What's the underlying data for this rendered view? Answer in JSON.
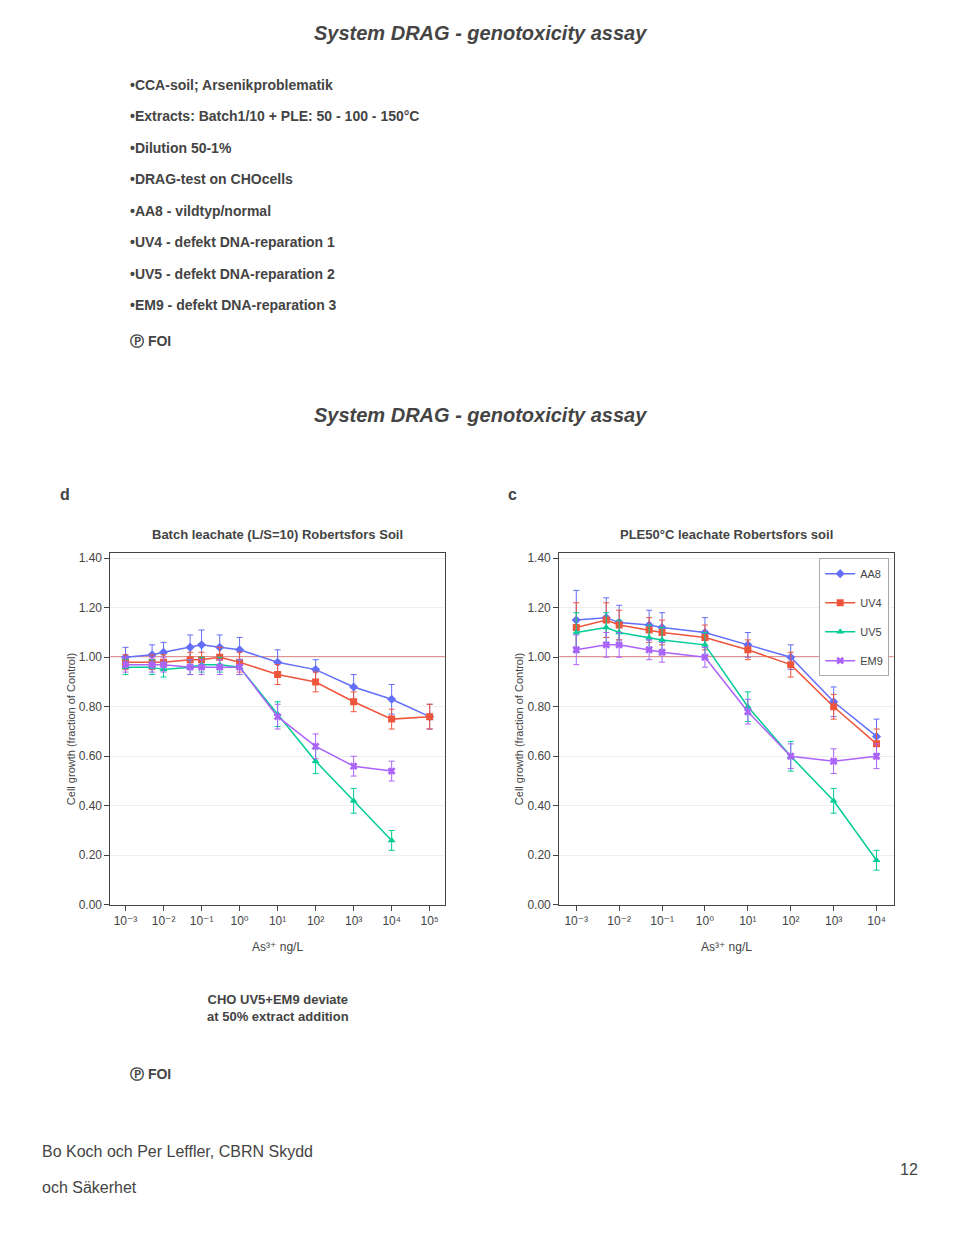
{
  "title": "System DRAG - genotoxicity assay",
  "bullets": [
    "•CCA-soil; Arsenikproblematik",
    "•Extracts: Batch1/10 + PLE: 50 - 100 - 150°C",
    "•Dilution 50-1%",
    "•DRAG-test on CHOcells",
    "•AA8 - vildtyp/normal",
    "•UV4 - defekt DNA-reparation 1",
    "•UV5 - defekt DNA-reparation 2",
    "•EM9 - defekt DNA-reparation 3"
  ],
  "footer": "Ⓟ FOI",
  "annotations": [
    "CHO UV5+EM9 deviate\nat 50% extract addition"
  ],
  "bottom_text": [
    "Bo Koch och Per Leffler, CBRN Skydd",
    "och Säkerhet"
  ],
  "page_number": "12",
  "chart_data": [
    {
      "type": "line",
      "title": "Batch leachate (L/S=10) Robertsfors Soil",
      "x_label": "As³⁺ ng/L",
      "y_label": "Cell growth (fraction of Control)",
      "annotations": [
        "d"
      ],
      "log": "x",
      "grid": "y",
      "x": [
        0.001,
        0.005,
        0.01,
        0.05,
        0.1,
        0.3,
        1,
        10,
        100,
        1000,
        10000,
        100000
      ],
      "series": [
        {
          "name": "AA8",
          "marker": "diamond",
          "values": [
            1.0,
            1.01,
            1.02,
            1.04,
            1.05,
            1.04,
            1.03,
            0.98,
            0.95,
            0.88,
            0.83,
            0.76
          ],
          "errors": [
            0.04,
            0.04,
            0.04,
            0.05,
            0.06,
            0.05,
            0.05,
            0.05,
            0.04,
            0.05,
            0.06,
            0.05
          ]
        },
        {
          "name": "UV4",
          "marker": "square",
          "values": [
            0.98,
            0.98,
            0.98,
            0.99,
            0.99,
            1.0,
            0.98,
            0.93,
            0.9,
            0.82,
            0.75,
            0.76
          ],
          "errors": [
            0.03,
            0.03,
            0.03,
            0.03,
            0.03,
            0.04,
            0.04,
            0.04,
            0.04,
            0.04,
            0.04,
            0.05
          ]
        },
        {
          "name": "UV5",
          "marker": "triangle-up",
          "values": [
            0.96,
            0.96,
            0.95,
            0.96,
            0.97,
            0.97,
            0.96,
            0.77,
            0.58,
            0.42,
            0.26,
            null
          ],
          "errors": [
            0.03,
            0.03,
            0.03,
            0.03,
            0.03,
            0.03,
            0.03,
            0.05,
            0.05,
            0.05,
            0.04,
            null
          ]
        },
        {
          "name": "EM9",
          "marker": "x",
          "values": [
            0.97,
            0.97,
            0.97,
            0.96,
            0.96,
            0.96,
            0.96,
            0.76,
            0.64,
            0.56,
            0.54,
            null
          ],
          "errors": [
            0.03,
            0.03,
            0.03,
            0.03,
            0.03,
            0.03,
            0.03,
            0.05,
            0.05,
            0.04,
            0.04,
            null
          ]
        }
      ],
      "reference_line": {
        "y": 1.0,
        "color": "#cc2222"
      },
      "xlim": [
        0.0004,
        250000
      ],
      "xticks": [
        {
          "value": 0.001,
          "label": "10⁻³"
        },
        {
          "value": 0.01,
          "label": "10⁻²"
        },
        {
          "value": 0.1,
          "label": "10⁻¹"
        },
        {
          "value": 1,
          "label": "10⁰"
        },
        {
          "value": 10,
          "label": "10¹"
        },
        {
          "value": 100,
          "label": "10²"
        },
        {
          "value": 1000,
          "label": "10³"
        },
        {
          "value": 10000,
          "label": "10⁴"
        },
        {
          "value": 100000,
          "label": "10⁵"
        }
      ],
      "ylim": [
        0.0,
        1.42
      ],
      "yticks": [
        {
          "value": 0.0,
          "label": "0.00"
        },
        {
          "value": 0.2,
          "label": "0.20"
        },
        {
          "value": 0.4,
          "label": "0.40"
        },
        {
          "value": 0.6,
          "label": "0.60"
        },
        {
          "value": 0.8,
          "label": "0.80"
        },
        {
          "value": 1.0,
          "label": "1.00"
        },
        {
          "value": 1.2,
          "label": "1.20"
        },
        {
          "value": 1.4,
          "label": "1.40"
        }
      ]
    },
    {
      "type": "line",
      "title": "PLE50°C leachate Robertsfors soil",
      "x_label": "As³⁺ ng/L",
      "y_label": "Cell growth (fraction of Control)",
      "annotations": [
        "c"
      ],
      "log": "x",
      "grid": "y",
      "legend": "upper right",
      "x": [
        0.001,
        0.005,
        0.01,
        0.05,
        0.1,
        1,
        10,
        100,
        1000,
        10000
      ],
      "series": [
        {
          "name": "AA8",
          "marker": "diamond",
          "values": [
            1.15,
            1.16,
            1.14,
            1.13,
            1.12,
            1.1,
            1.05,
            1.0,
            0.82,
            0.68
          ],
          "errors": [
            0.12,
            0.08,
            0.07,
            0.06,
            0.06,
            0.06,
            0.05,
            0.05,
            0.06,
            0.07
          ]
        },
        {
          "name": "UV4",
          "marker": "square",
          "values": [
            1.12,
            1.15,
            1.13,
            1.11,
            1.1,
            1.08,
            1.03,
            0.97,
            0.8,
            0.65
          ],
          "errors": [
            0.1,
            0.07,
            0.06,
            0.05,
            0.05,
            0.05,
            0.04,
            0.05,
            0.05,
            0.06
          ]
        },
        {
          "name": "UV5",
          "marker": "triangle-up",
          "values": [
            1.1,
            1.12,
            1.1,
            1.08,
            1.07,
            1.05,
            0.8,
            0.6,
            0.42,
            0.18
          ],
          "errors": [
            0.08,
            0.06,
            0.05,
            0.05,
            0.05,
            0.05,
            0.06,
            0.06,
            0.05,
            0.04
          ]
        },
        {
          "name": "EM9",
          "marker": "x",
          "values": [
            1.03,
            1.05,
            1.05,
            1.03,
            1.02,
            1.0,
            0.78,
            0.6,
            0.58,
            0.6
          ],
          "errors": [
            0.06,
            0.05,
            0.05,
            0.04,
            0.04,
            0.04,
            0.05,
            0.05,
            0.05,
            0.05
          ]
        }
      ],
      "reference_line": {
        "y": 1.0,
        "color": "#cc2222"
      },
      "xlim": [
        0.0004,
        25000
      ],
      "xticks": [
        {
          "value": 0.001,
          "label": "10⁻³"
        },
        {
          "value": 0.01,
          "label": "10⁻²"
        },
        {
          "value": 0.1,
          "label": "10⁻¹"
        },
        {
          "value": 1,
          "label": "10⁰"
        },
        {
          "value": 10,
          "label": "10¹"
        },
        {
          "value": 100,
          "label": "10²"
        },
        {
          "value": 1000,
          "label": "10³"
        },
        {
          "value": 10000,
          "label": "10⁴"
        }
      ],
      "ylim": [
        0.0,
        1.42
      ],
      "yticks": [
        {
          "value": 0.0,
          "label": "0.00"
        },
        {
          "value": 0.2,
          "label": "0.20"
        },
        {
          "value": 0.4,
          "label": "0.40"
        },
        {
          "value": 0.6,
          "label": "0.60"
        },
        {
          "value": 0.8,
          "label": "0.80"
        },
        {
          "value": 1.0,
          "label": "1.00"
        },
        {
          "value": 1.2,
          "label": "1.20"
        },
        {
          "value": 1.4,
          "label": "1.40"
        }
      ]
    }
  ]
}
